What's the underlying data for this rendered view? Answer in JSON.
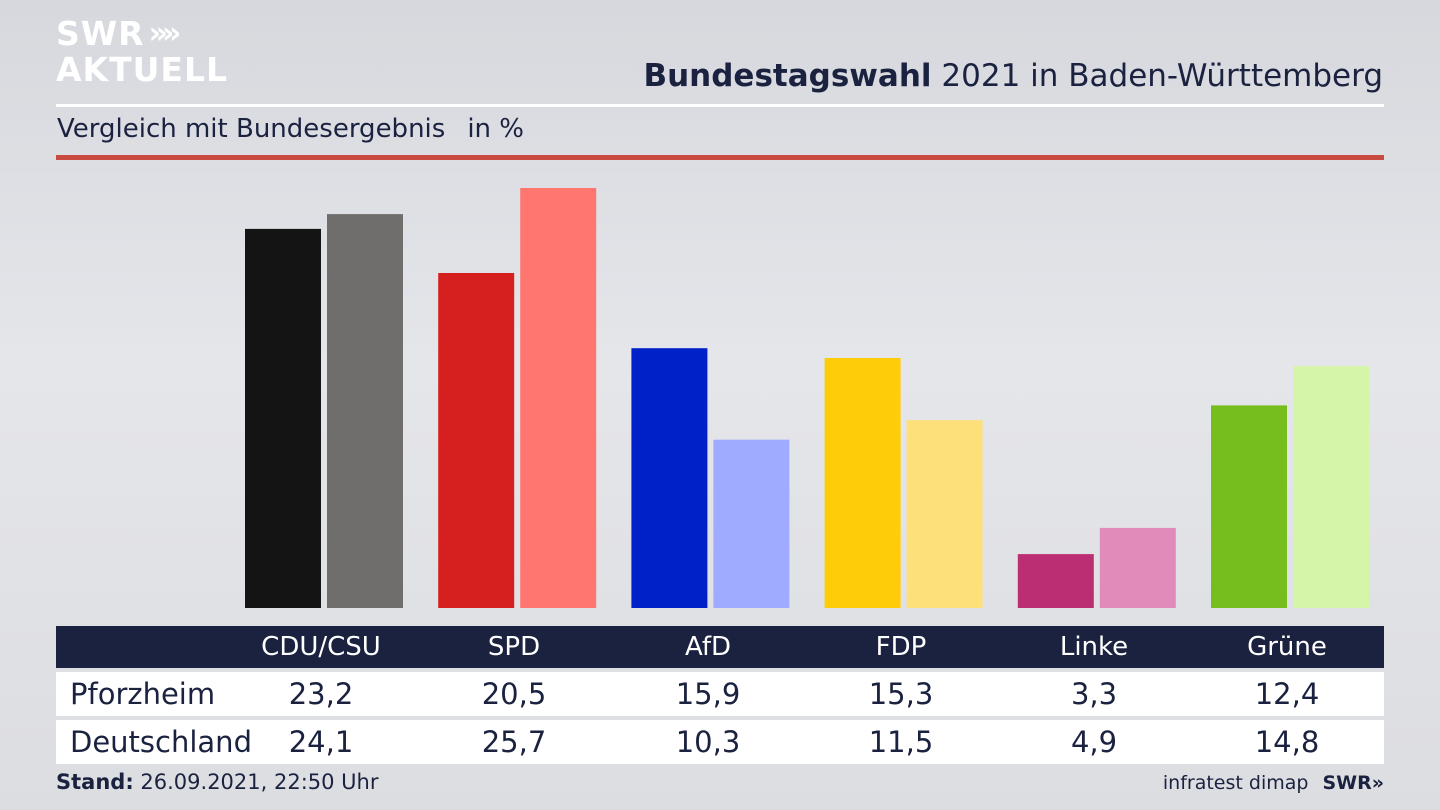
{
  "brand": {
    "line1": "SWR",
    "line2": "AKTUELL",
    "chevrons": "»"
  },
  "title": {
    "bold": "Bundestagswahl",
    "rest": " 2021 in Baden-Württemberg"
  },
  "subtitle": {
    "text": "Vergleich mit Bundesergebnis",
    "unit": "in %"
  },
  "chart_data": {
    "type": "bar",
    "categories": [
      "CDU/CSU",
      "SPD",
      "AfD",
      "FDP",
      "Linke",
      "Grüne"
    ],
    "series": [
      {
        "name": "Pforzheim",
        "values": [
          23.2,
          20.5,
          15.9,
          15.3,
          3.3,
          12.4
        ],
        "colors": [
          "#141414",
          "#d61f1f",
          "#0021c8",
          "#ffcc0a",
          "#bb2e73",
          "#76bd1e"
        ]
      },
      {
        "name": "Deutschland",
        "values": [
          24.1,
          25.7,
          10.3,
          11.5,
          4.9,
          14.8
        ],
        "colors": [
          "#6f6e6c",
          "#ff7670",
          "#9eabff",
          "#fde079",
          "#e08bb9",
          "#d5f6a8"
        ]
      }
    ],
    "value_labels": {
      "Pforzheim": [
        "23,2",
        "20,5",
        "15,9",
        "15,3",
        "3,3",
        "12,4"
      ],
      "Deutschland": [
        "24,1",
        "25,7",
        "10,3",
        "11,5",
        "4,9",
        "14,8"
      ]
    },
    "ylim": [
      0,
      26
    ],
    "grid": false,
    "legend": "table-below"
  },
  "footer": {
    "label": "Stand:",
    "datetime": " 26.09.2021, 22:50 Uhr"
  },
  "source": {
    "institute": "infratest dimap",
    "broadcaster": "SWR"
  }
}
